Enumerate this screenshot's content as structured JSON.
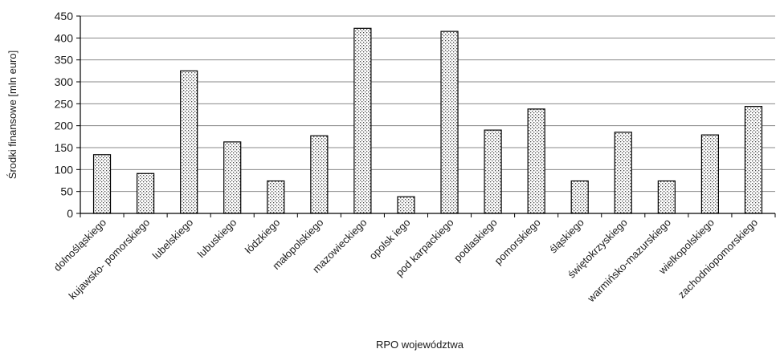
{
  "chart_data": {
    "type": "bar",
    "xlabel": "RPO województwa",
    "ylabel": "Środki finansowe  [mln euro]",
    "ylim": [
      0,
      450
    ],
    "yticks": [
      0,
      50,
      100,
      150,
      200,
      250,
      300,
      350,
      400,
      450
    ],
    "grid": true,
    "categories": [
      "dolnośląskiego",
      "kujawsko- pomorskiego",
      "lubelskiego",
      "lubuskiego",
      "łódzkiego",
      "małopolskiego",
      "mazowieckiego",
      "opolsk iego",
      "pod karpackiego",
      "podlaskiego",
      "pomorskiego",
      "śląskiego",
      "świętokrzyskiego",
      "warmińsko-mazurskiego",
      "wielkopolskiego",
      "zachodniopomorskiego"
    ],
    "values": [
      134,
      91,
      325,
      163,
      74,
      177,
      422,
      38,
      415,
      190,
      238,
      74,
      185,
      74,
      179,
      244
    ]
  }
}
